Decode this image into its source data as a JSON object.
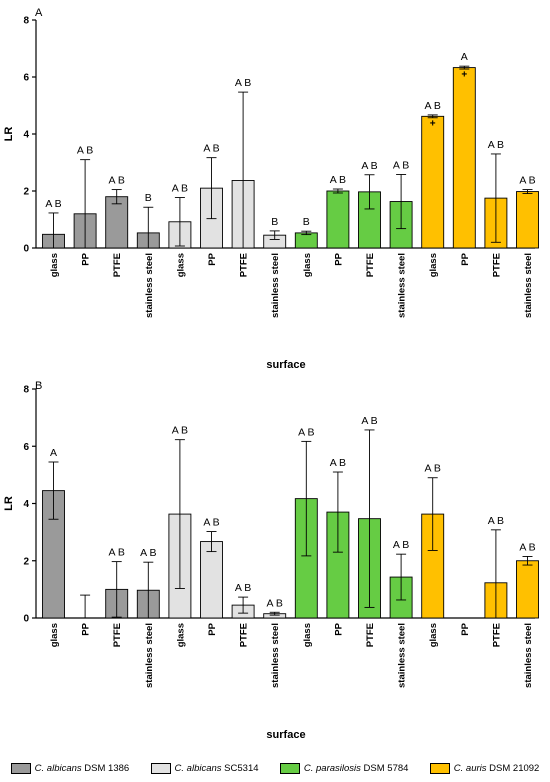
{
  "chart_data": [
    {
      "type": "bar",
      "panel_label": "A",
      "ylabel": "LR",
      "xlabel": "surface",
      "ylim": [
        0,
        8
      ],
      "yticks": [
        0,
        2,
        4,
        6,
        8
      ],
      "grid": false,
      "categories": [
        "glass",
        "PP",
        "PTFE",
        "stainless steel",
        "glass",
        "PP",
        "PTFE",
        "stainless steel",
        "glass",
        "PP",
        "PTFE",
        "stainless steel",
        "glass",
        "PP",
        "PTFE",
        "stainless steel"
      ],
      "group": [
        0,
        0,
        0,
        0,
        1,
        1,
        1,
        1,
        2,
        2,
        2,
        2,
        3,
        3,
        3,
        3
      ],
      "values": [
        0.48,
        1.2,
        1.8,
        0.53,
        0.92,
        2.1,
        2.37,
        0.45,
        0.53,
        2.0,
        1.97,
        1.63,
        4.62,
        6.33,
        1.75,
        1.98
      ],
      "error": [
        0.75,
        1.9,
        0.25,
        0.9,
        0.85,
        1.07,
        3.1,
        0.15,
        0.06,
        0.07,
        0.6,
        0.95,
        0.05,
        0.05,
        1.55,
        0.07
      ],
      "markers": [
        "",
        "",
        "",
        "",
        "",
        "",
        "",
        "",
        "",
        "",
        "",
        "",
        "+",
        "+",
        "",
        ""
      ],
      "annotations": [
        "A B",
        "A B",
        "A B",
        "B",
        "A B",
        "A B",
        "A B",
        "B",
        "B",
        "A B",
        "A B",
        "A B",
        "A B",
        "A",
        "A B",
        "A B"
      ]
    },
    {
      "type": "bar",
      "panel_label": "B",
      "ylabel": "LR",
      "xlabel": "surface",
      "ylim": [
        0,
        8
      ],
      "yticks": [
        0,
        2,
        4,
        6,
        8
      ],
      "grid": false,
      "categories": [
        "glass",
        "PP",
        "PTFE",
        "stainless steel",
        "glass",
        "PP",
        "PTFE",
        "stainless steel",
        "glass",
        "PP",
        "PTFE",
        "stainless steel",
        "glass",
        "PP",
        "PTFE",
        "stainless steel"
      ],
      "group": [
        0,
        0,
        0,
        0,
        1,
        1,
        1,
        1,
        2,
        2,
        2,
        2,
        3,
        3,
        3,
        3
      ],
      "values": [
        4.45,
        0,
        1.0,
        0.97,
        3.63,
        2.67,
        0.45,
        0.15,
        4.17,
        3.7,
        3.47,
        1.43,
        3.63,
        0,
        1.23,
        2.0
      ],
      "error": [
        1.0,
        0.8,
        0.97,
        0.98,
        2.6,
        0.35,
        0.28,
        0.05,
        2.0,
        1.4,
        3.1,
        0.8,
        1.27,
        0,
        1.85,
        0.15
      ],
      "markers": [
        "",
        "",
        "",
        "",
        "",
        "",
        "",
        "",
        "",
        "",
        "",
        "",
        "",
        "",
        "",
        ""
      ],
      "annotations": [
        "A",
        "",
        "A B",
        "A B",
        "A B",
        "A B",
        "A B",
        "A B",
        "A B",
        "A B",
        "A B",
        "A B",
        "A B",
        "",
        "A B",
        "A B"
      ]
    }
  ],
  "legend": [
    {
      "italic": "C. albicans",
      "rest": " DSM 1386",
      "color": "#9a9a9a"
    },
    {
      "italic": "C. albicans",
      "rest": " SC5314",
      "color": "#e2e2e2"
    },
    {
      "italic": "C. parasilosis",
      "rest": " DSM 5784",
      "color": "#66cc44"
    },
    {
      "italic": "C. auris",
      "rest": " DSM 21092",
      "color": "#ffc000"
    }
  ]
}
